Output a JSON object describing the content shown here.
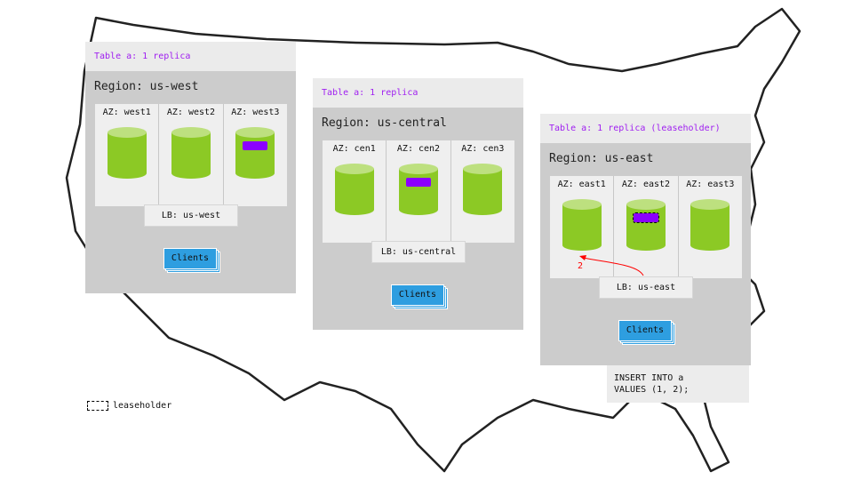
{
  "regions": [
    {
      "table_label": "Table a: 1 replica",
      "region_label": "Region: us-west",
      "azs": [
        "AZ: west1",
        "AZ: west2",
        "AZ: west3"
      ],
      "replica_az": 2,
      "leaseholder": false,
      "lb_label": "LB: us-west",
      "clients_label": "Clients"
    },
    {
      "table_label": "Table a: 1 replica",
      "region_label": "Region: us-central",
      "azs": [
        "AZ: cen1",
        "AZ: cen2",
        "AZ: cen3"
      ],
      "replica_az": 1,
      "leaseholder": false,
      "lb_label": "LB: us-central",
      "clients_label": "Clients"
    },
    {
      "table_label": "Table a: 1 replica (leaseholder)",
      "region_label": "Region: us-east",
      "azs": [
        "AZ: east1",
        "AZ: east2",
        "AZ: east3"
      ],
      "replica_az": 1,
      "leaseholder": true,
      "lb_label": "LB: us-east",
      "clients_label": "Clients"
    }
  ],
  "arrow": {
    "label": "2",
    "color": "#ff0000"
  },
  "sql": "INSERT INTO a\nVALUES (1, 2);",
  "legend": {
    "label": "leaseholder"
  },
  "colors": {
    "replica": "#8b00ff",
    "node": "#8cc925",
    "clients": "#2e9ee0",
    "table_label": "#a020f0"
  }
}
